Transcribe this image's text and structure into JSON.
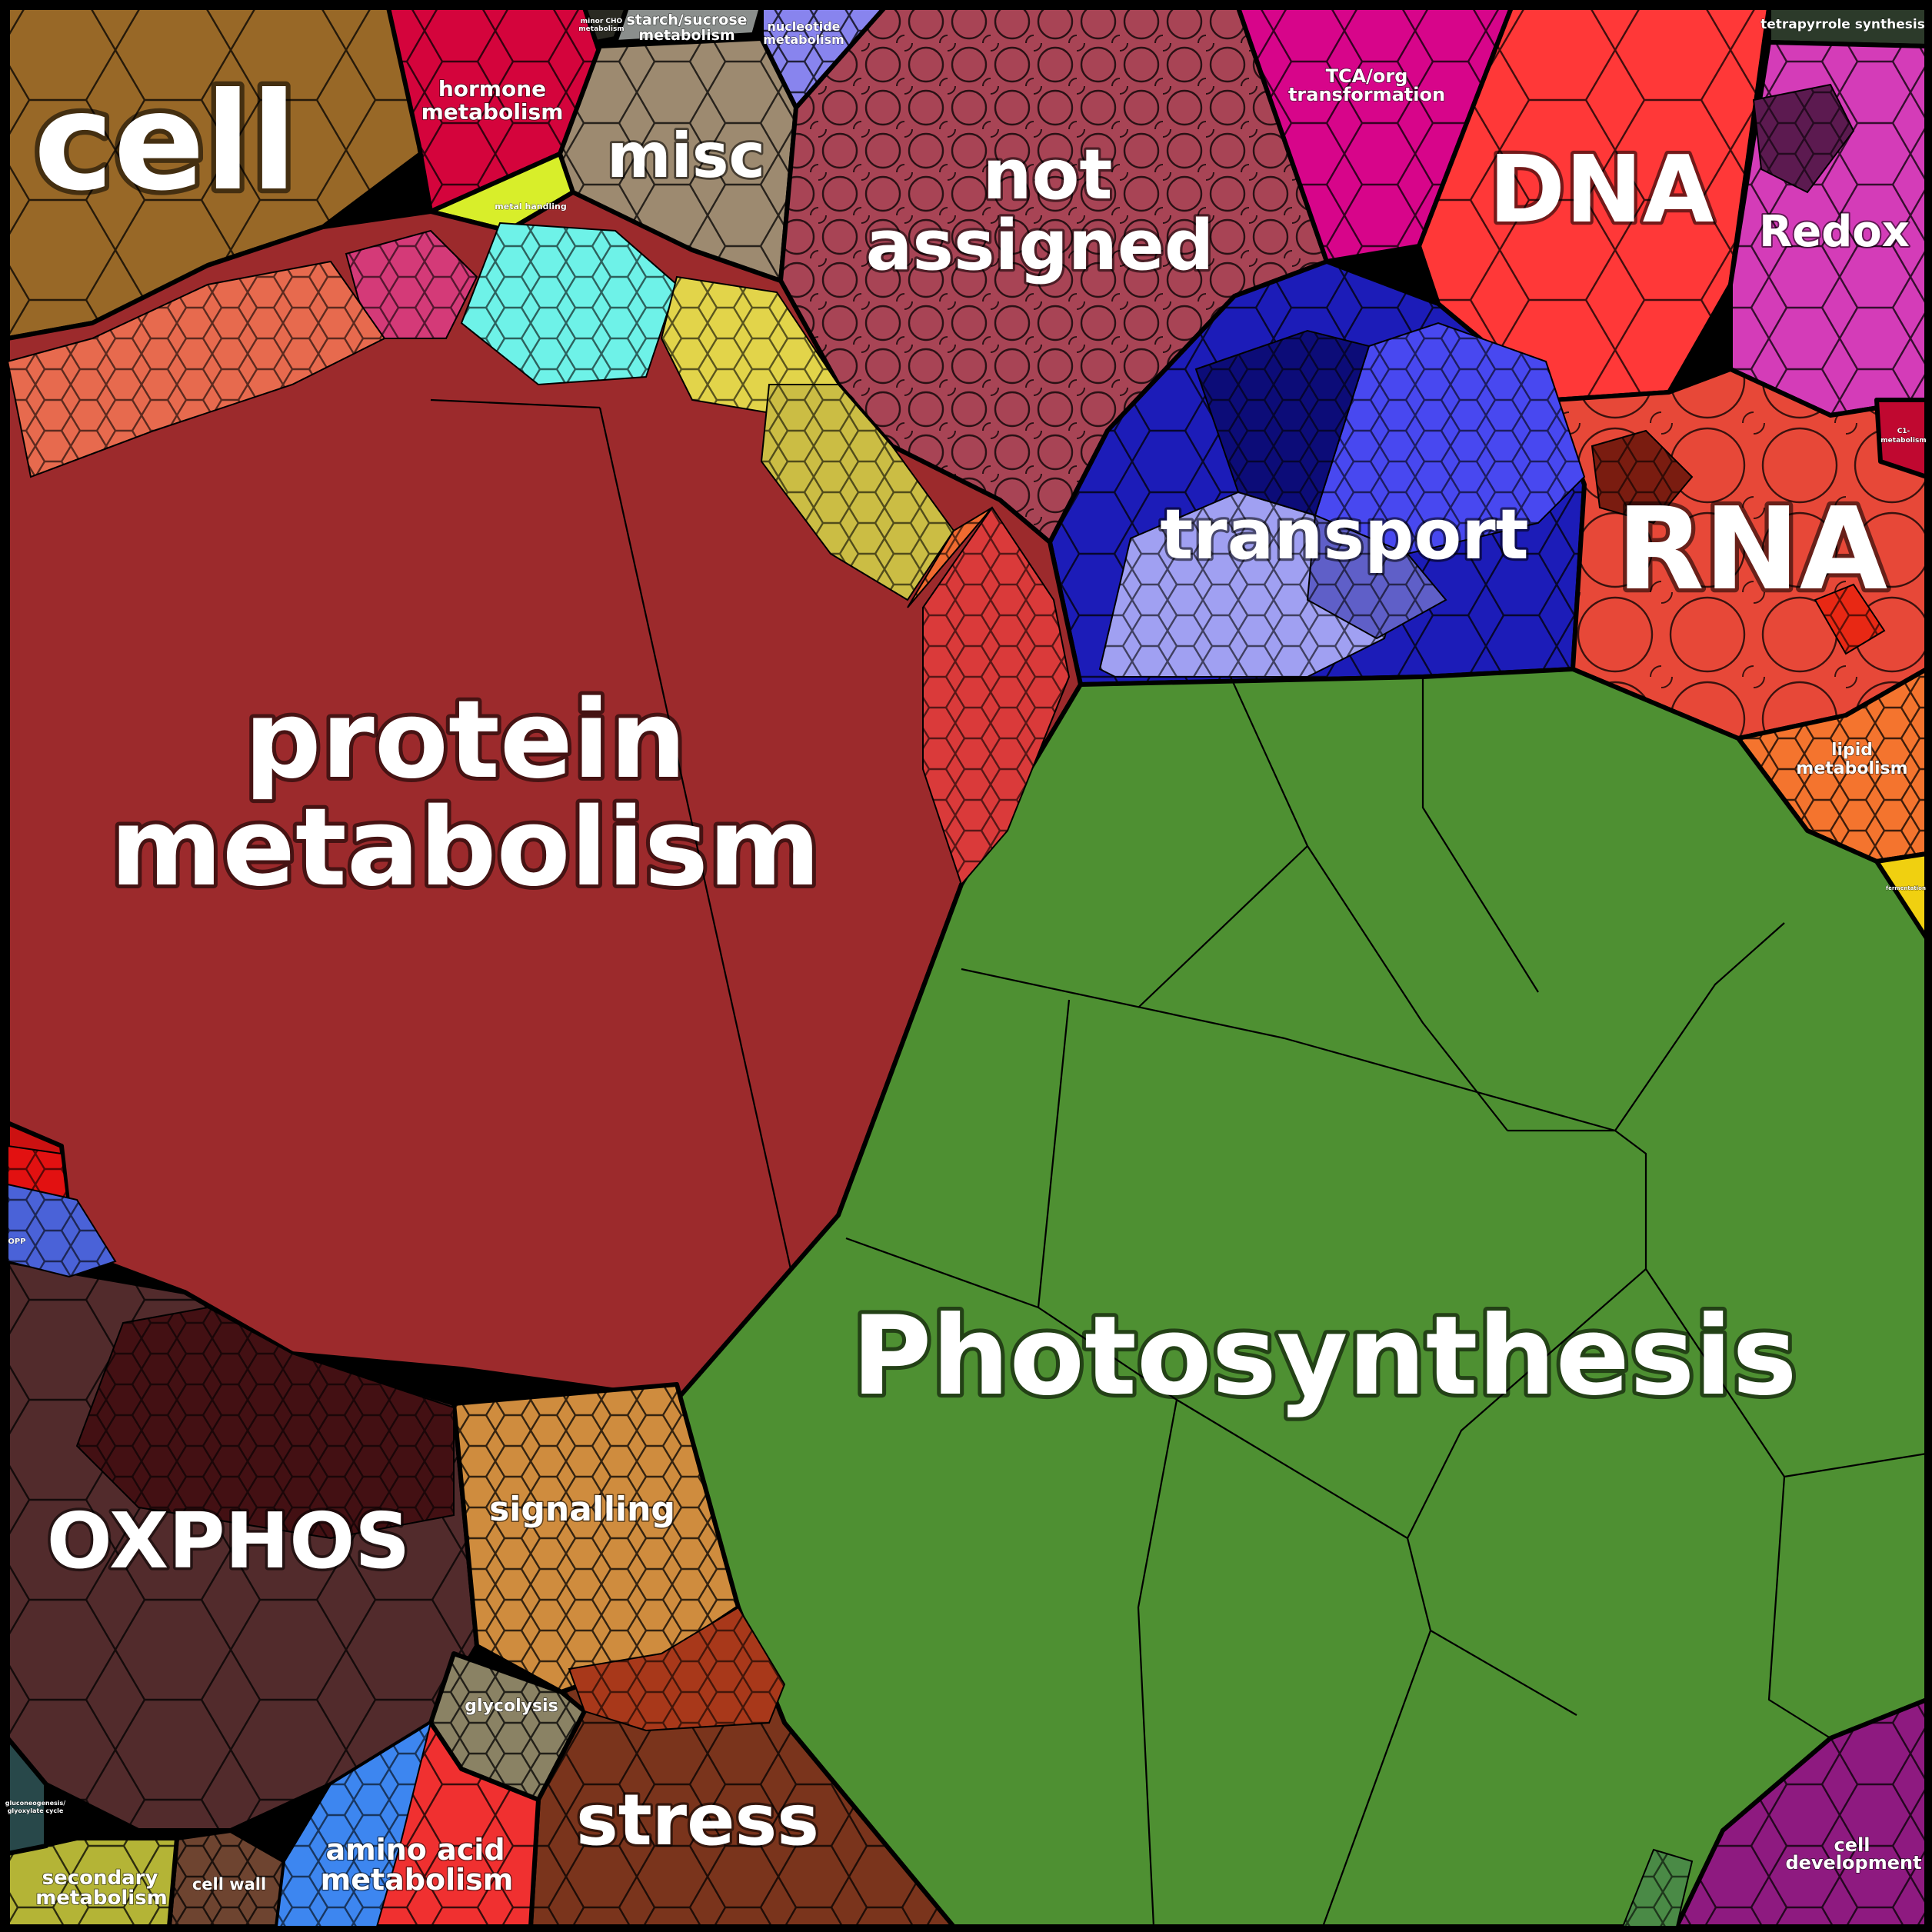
{
  "chart_data": {
    "type": "voronoi-treemap",
    "title": "",
    "categories": [
      {
        "id": "cell",
        "label": "cell",
        "color": "#986827"
      },
      {
        "id": "hormone",
        "label": "hormone metabolism",
        "color": "#d4043c"
      },
      {
        "id": "minor-cho",
        "label": "minor CHO metabolism",
        "color": "#2a2a22"
      },
      {
        "id": "starch",
        "label": "starch/sucrose metabolism",
        "color": "#8a8e8c"
      },
      {
        "id": "nucleotide",
        "label": "nucleotide metabolism",
        "color": "#8884ee"
      },
      {
        "id": "misc",
        "label": "misc",
        "color": "#9d8a70"
      },
      {
        "id": "not-assigned",
        "label": "not assigned",
        "color": "#a84455"
      },
      {
        "id": "tca",
        "label": "TCA/org transformation",
        "color": "#d7058a"
      },
      {
        "id": "dna",
        "label": "DNA",
        "color": "#ff3838"
      },
      {
        "id": "tetrapyrrole",
        "label": "tetrapyrrole synthesis",
        "color": "#2c3a2a"
      },
      {
        "id": "redox",
        "label": "Redox",
        "color": "#d43cb8"
      },
      {
        "id": "metal",
        "label": "metal handling",
        "color": "#d8ee2a"
      },
      {
        "id": "transport",
        "label": "transport",
        "color": "#1c1cb8"
      },
      {
        "id": "rna",
        "label": "RNA",
        "color": "#e74838"
      },
      {
        "id": "c1",
        "label": "C1-metabolism",
        "color": "#c00830"
      },
      {
        "id": "lipid",
        "label": "lipid metabolism",
        "color": "#f4742e"
      },
      {
        "id": "fermentation",
        "label": "fermentation",
        "color": "#f0d010"
      },
      {
        "id": "protein",
        "label": "protein metabolism",
        "color": "#9c2a2c"
      },
      {
        "id": "photosynthesis",
        "label": "Photosynthesis",
        "color": "#4e9032"
      },
      {
        "id": "opp",
        "label": "OPP",
        "color": "#cc1111"
      },
      {
        "id": "oxphos",
        "label": "OXPHOS",
        "color": "#522b2c"
      },
      {
        "id": "signalling",
        "label": "signalling",
        "color": "#cf8c3e"
      },
      {
        "id": "glycolysis",
        "label": "glycolysis",
        "color": "#8a8264"
      },
      {
        "id": "stress",
        "label": "stress",
        "color": "#7a341c"
      },
      {
        "id": "amino",
        "label": "amino acid metabolism",
        "color": "#f03030"
      },
      {
        "id": "cell-wall",
        "label": "cell wall",
        "color": "#6e4430"
      },
      {
        "id": "secondary",
        "label": "secondary metabolism",
        "color": "#b4b436"
      },
      {
        "id": "gluconeo",
        "label": "gluconeogenesis/ glyoxylate cycle",
        "color": "#28484a"
      },
      {
        "id": "cell-dev",
        "label": "cell development",
        "color": "#8e1a80"
      }
    ]
  },
  "labels": {
    "cell": "cell",
    "hormone_1": "hormone",
    "hormone_2": "metabolism",
    "minor_cho_1": "minor CHO",
    "minor_cho_2": "metabolism",
    "starch_1": "starch/sucrose",
    "starch_2": "metabolism",
    "nucleotide_1": "nucleotide",
    "nucleotide_2": "metabolism",
    "misc": "misc",
    "not_assigned_1": "not",
    "not_assigned_2": "assigned",
    "tca_1": "TCA/org",
    "tca_2": "transformation",
    "dna": "DNA",
    "tetrapyrrole": "tetrapyrrole synthesis",
    "redox": "Redox",
    "metal": "metal handling",
    "transport": "transport",
    "rna": "RNA",
    "c1_1": "C1-",
    "c1_2": "metabolism",
    "lipid_1": "lipid",
    "lipid_2": "metabolism",
    "fermentation": "fermentation",
    "protein_1": "protein",
    "protein_2": "metabolism",
    "photosynthesis": "Photosynthesis",
    "opp": "OPP",
    "oxphos": "OXPHOS",
    "signalling": "signalling",
    "glycolysis": "glycolysis",
    "stress": "stress",
    "amino_1": "amino acid",
    "amino_2": "metabolism",
    "cell_wall": "cell wall",
    "secondary_1": "secondary",
    "secondary_2": "metabolism",
    "gluco_1": "gluconeogenesis/",
    "gluco_2": "glyoxylate cycle",
    "cell_dev_1": "cell",
    "cell_dev_2": "development"
  }
}
